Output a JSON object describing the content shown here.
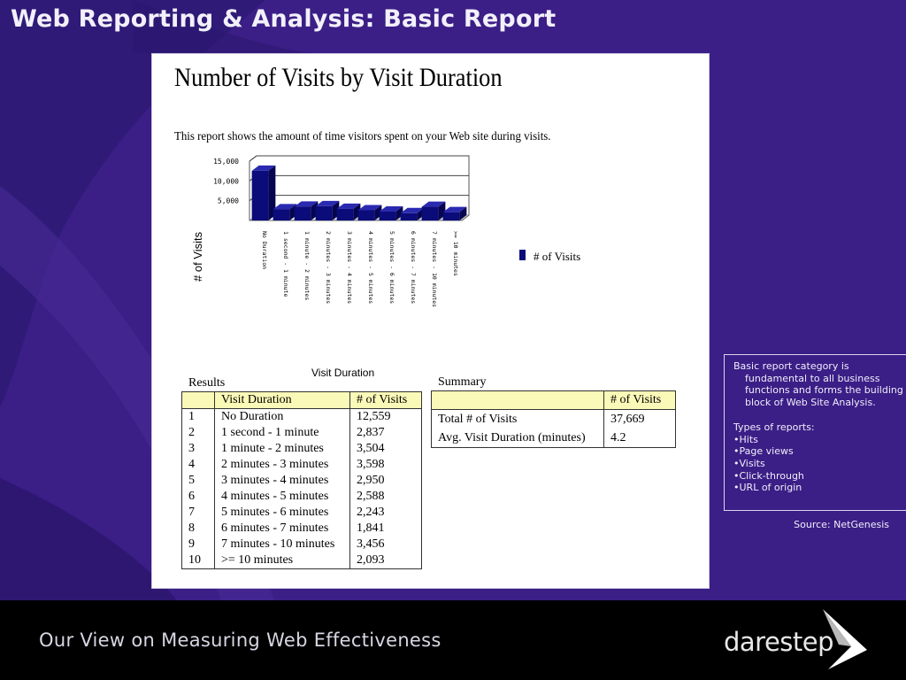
{
  "slide": {
    "title": "Web Reporting & Analysis: Basic Report"
  },
  "report": {
    "title": "Number of Visits by Visit Duration",
    "description": "This report shows the amount of time visitors spent on your Web site during visits."
  },
  "chart_data": {
    "type": "bar",
    "title": "",
    "xlabel": "Visit Duration",
    "ylabel": "# of Visits",
    "ylim": [
      0,
      15000
    ],
    "yticks": [
      "15,000",
      "10,000",
      "5,000"
    ],
    "categories": [
      "No Duration",
      "1 second - 1 minute",
      "1 minute - 2 minutes",
      "2 minutes - 3 minutes",
      "3 minutes - 4 minutes",
      "4 minutes - 5 minutes",
      "5 minutes - 6 minutes",
      "6 minutes - 7 minutes",
      "7 minutes - 10 minutes",
      ">= 10 minutes"
    ],
    "series": [
      {
        "name": "# of Visits",
        "values": [
          12559,
          2837,
          3504,
          3598,
          2950,
          2588,
          2243,
          1841,
          3456,
          2093
        ]
      }
    ],
    "legend": "right",
    "bar_color": "#0b0b7a",
    "grid": true
  },
  "results": {
    "label": "Results",
    "headers": [
      "",
      "Visit Duration",
      "# of Visits"
    ],
    "rows": [
      [
        "1",
        "No Duration",
        "12,559"
      ],
      [
        "2",
        "1 second - 1 minute",
        "2,837"
      ],
      [
        "3",
        "1 minute - 2 minutes",
        "3,504"
      ],
      [
        "4",
        "2 minutes - 3 minutes",
        "3,598"
      ],
      [
        "5",
        "3 minutes - 4 minutes",
        "2,950"
      ],
      [
        "6",
        "4 minutes - 5 minutes",
        "2,588"
      ],
      [
        "7",
        "5 minutes - 6 minutes",
        "2,243"
      ],
      [
        "8",
        "6 minutes - 7 minutes",
        "1,841"
      ],
      [
        "9",
        "7 minutes - 10 minutes",
        "3,456"
      ],
      [
        "10",
        ">= 10 minutes",
        "2,093"
      ]
    ]
  },
  "summary": {
    "label": "Summary",
    "headers": [
      "",
      "# of Visits"
    ],
    "rows": [
      [
        "Total # of Visits",
        "37,669"
      ],
      [
        "Avg. Visit Duration (minutes)",
        "4.2"
      ]
    ]
  },
  "sidebar": {
    "intro": "Basic report category is fundamental to all business functions and forms the building block of Web Site Analysis.",
    "types_heading": "Types of reports:",
    "types": [
      "Hits",
      "Page views",
      "Visits",
      "Click-through",
      "URL of origin"
    ],
    "source": "Source: NetGenesis"
  },
  "footer": {
    "tagline": "Our View on Measuring Web Effectiveness",
    "logo": "darestep"
  },
  "colors": {
    "background": "#3b1e86",
    "footer": "#000000",
    "header_fill": "#fbf9b7",
    "bar": "#0b0b7a"
  }
}
